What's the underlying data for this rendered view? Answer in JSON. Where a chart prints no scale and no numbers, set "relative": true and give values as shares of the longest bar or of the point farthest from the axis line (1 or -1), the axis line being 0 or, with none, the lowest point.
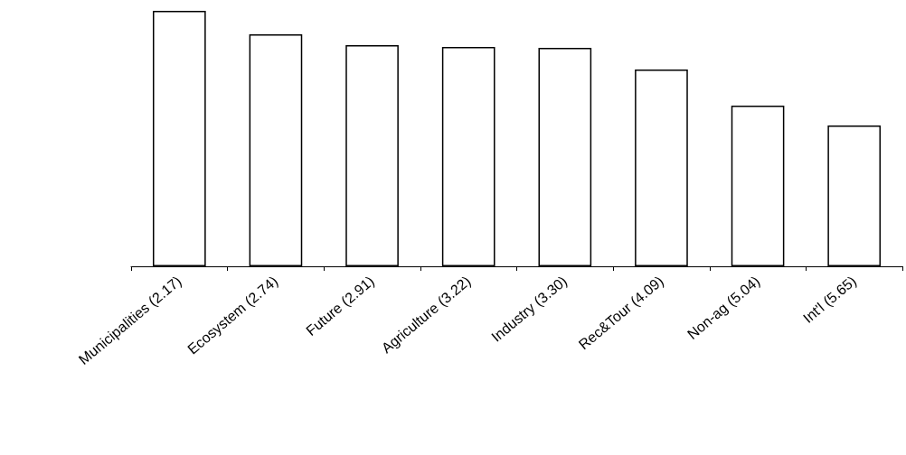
{
  "chart_data": {
    "type": "bar",
    "relative": true,
    "categories": [
      "Municipalities (2.17)",
      "Ecosystem (2.74)",
      "Future (2.91)",
      "Agriculture (3.22)",
      "Industry (3.30)",
      "Rec&Tour (4.09)",
      "Non-ag (5.04)",
      "Int'l (5.65)"
    ],
    "values": [
      1.0,
      0.908,
      0.866,
      0.859,
      0.855,
      0.77,
      0.629,
      0.551
    ],
    "color": "#ffffff"
  }
}
